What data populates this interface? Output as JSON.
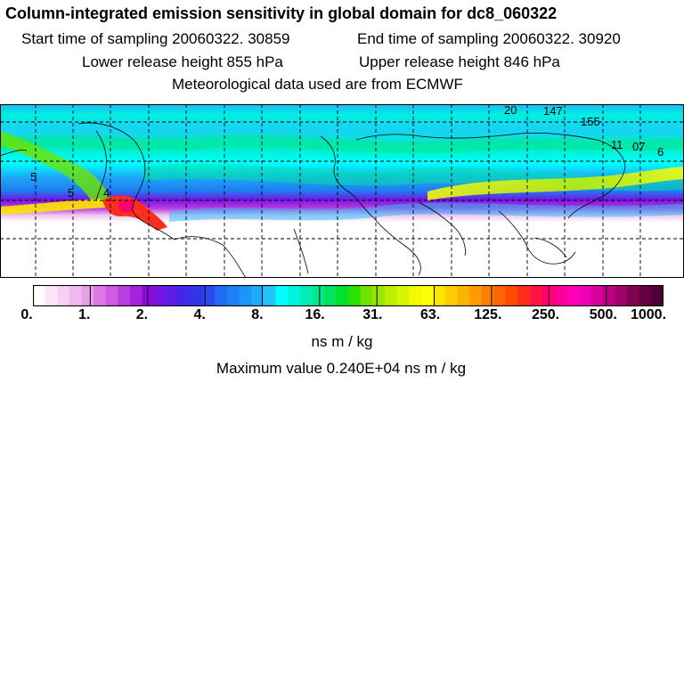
{
  "header": {
    "title": "Column-integrated emission sensitivity in global domain for dc8_060322",
    "start_time": "Start time of sampling 20060322. 30859",
    "end_time": "End time of sampling 20060322. 30920",
    "lower_height": "Lower release height  855 hPa",
    "upper_height": "Upper release height  846 hPa",
    "met_data": "Meteorological data used are from ECMWF"
  },
  "map": {
    "projection": "global lat-lon",
    "gridlines": "dashed",
    "field": "column-integrated emission sensitivity",
    "contour_labels": [
      "5",
      "4",
      "5",
      "20",
      "147",
      "155",
      "11",
      "07",
      "6"
    ]
  },
  "colorbar": {
    "labels": [
      "0.",
      "1.",
      "2.",
      "4.",
      "8.",
      "16.",
      "31.",
      "63.",
      "125.",
      "250.",
      "500.",
      "1000."
    ],
    "colors": [
      "#ffffff",
      "#fbe6fb",
      "#f6d1f6",
      "#efb8ef",
      "#e8a0e8",
      "#dd7ae5",
      "#cf5ce2",
      "#bb3ee0",
      "#a521de",
      "#8a0bdc",
      "#7514e3",
      "#5b1ee5",
      "#4029e6",
      "#3334ea",
      "#2b48ee",
      "#1f6cf0",
      "#1c80f3",
      "#1c95f5",
      "#1eaaf8",
      "#22c2fa",
      "#00ffff",
      "#00f3dc",
      "#00ecb8",
      "#00e890",
      "#00e45c",
      "#00e030",
      "#2ee000",
      "#6ee400",
      "#9ae800",
      "#bfef00",
      "#d7f400",
      "#f0fa00",
      "#ffff00",
      "#ffe600",
      "#ffcc00",
      "#ffb400",
      "#ff9b00",
      "#ff8000",
      "#ff6400",
      "#ff4b00",
      "#ff2d1e",
      "#ff1446",
      "#ff006e",
      "#ff0096",
      "#ff00b4",
      "#f000b4",
      "#d7009b",
      "#be0082",
      "#a00069",
      "#820050",
      "#640041",
      "#4b0037"
    ],
    "units": "ns m / kg"
  },
  "footer": {
    "max_value": "Maximum value  0.240E+04 ns m / kg"
  }
}
